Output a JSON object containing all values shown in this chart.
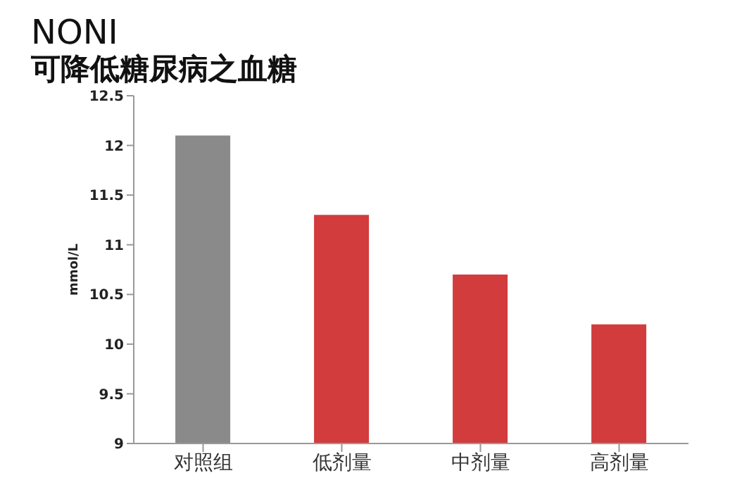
{
  "chart_data": {
    "type": "bar",
    "title": "NONI",
    "subtitle": "可降低糖尿病之血糖",
    "ylabel": "mmol/L",
    "categories": [
      "对照组",
      "低剂量",
      "中剂量",
      "高剂量"
    ],
    "values": [
      12.1,
      11.3,
      10.7,
      10.2
    ],
    "colors": [
      "#8a8a8a",
      "#d23c3c",
      "#d23c3c",
      "#d23c3c"
    ],
    "ylim": [
      9,
      12.5
    ],
    "yticks": [
      9,
      9.5,
      10,
      10.5,
      11,
      11.5,
      12,
      12.5
    ],
    "grid": false,
    "legend": false
  }
}
